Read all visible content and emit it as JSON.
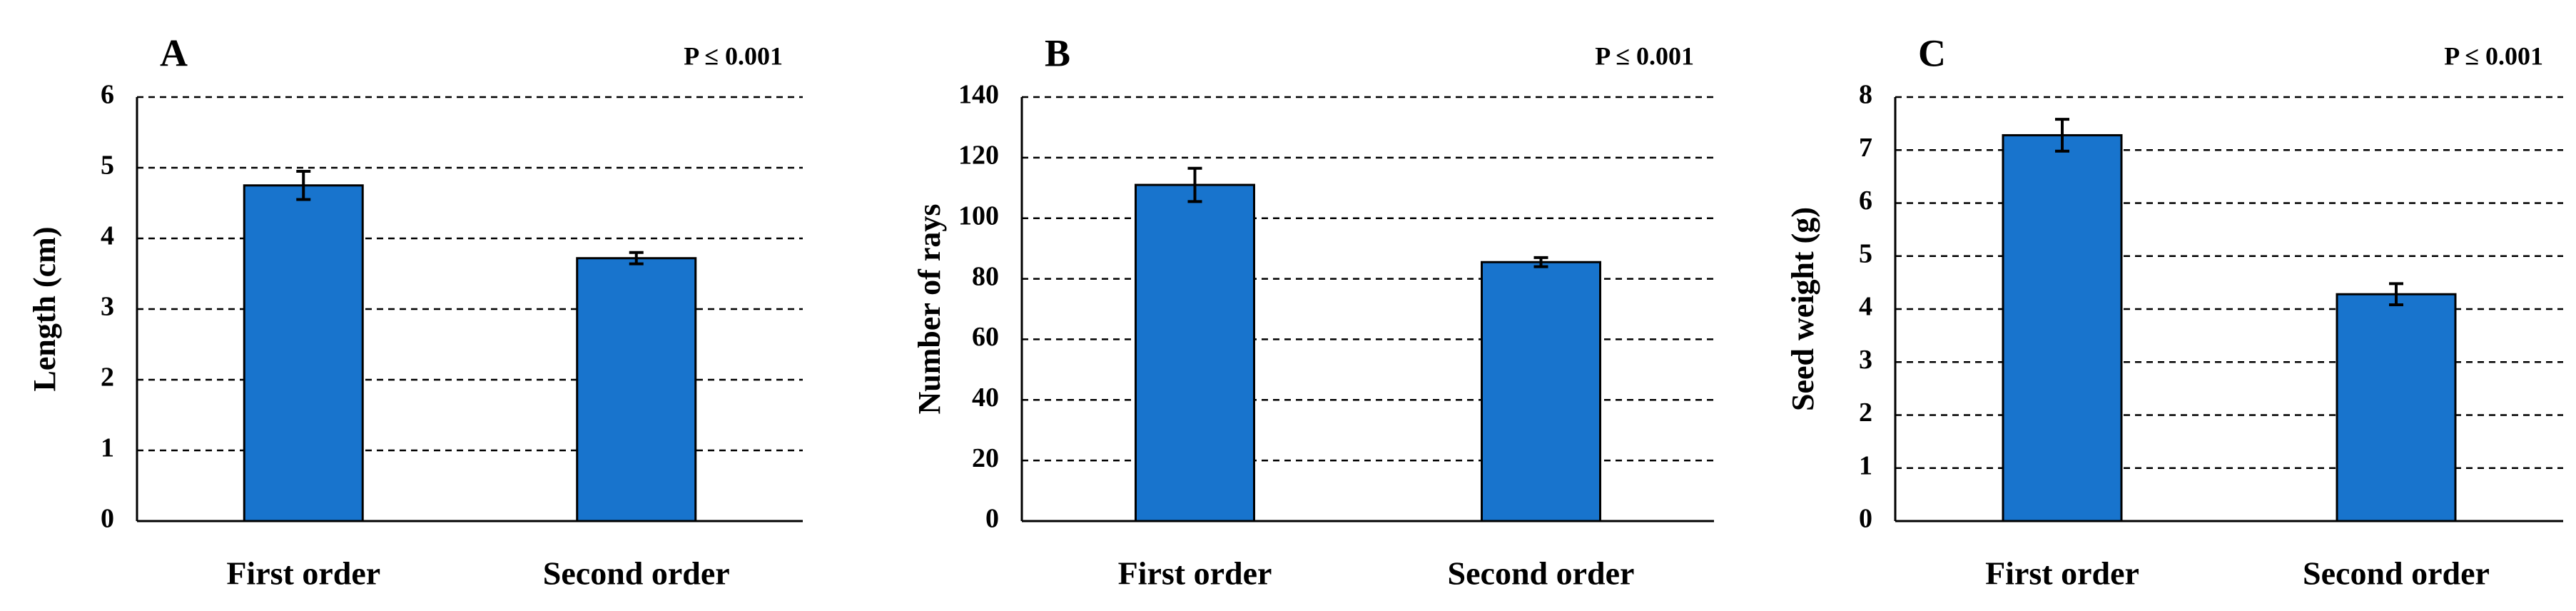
{
  "chart_data": [
    {
      "type": "bar",
      "panel": "A",
      "annotation": "P ≤ 0.001",
      "y_label": "Length (cm)",
      "categories": [
        "First order",
        "Second order"
      ],
      "series": [
        {
          "color": "#1874cd",
          "values": [
            4.75,
            3.72
          ],
          "errors": [
            0.2,
            0.08
          ]
        }
      ],
      "ylim": [
        0,
        6
      ],
      "yticks": [
        0,
        1,
        2,
        3,
        4,
        5,
        6
      ],
      "grid": true
    },
    {
      "type": "bar",
      "panel": "B",
      "annotation": "P ≤ 0.001",
      "y_label": "Number of rays",
      "categories": [
        "First order",
        "Second order"
      ],
      "series": [
        {
          "color": "#1874cd",
          "values": [
            111,
            85.5
          ],
          "errors": [
            5.5,
            1.5
          ]
        }
      ],
      "ylim": [
        0,
        140
      ],
      "yticks": [
        0,
        20,
        40,
        60,
        80,
        100,
        120,
        140
      ],
      "grid": true
    },
    {
      "type": "bar",
      "panel": "C",
      "annotation": "P ≤ 0.001",
      "y_label": "Seed weight (g)",
      "categories": [
        "First order",
        "Second order"
      ],
      "series": [
        {
          "color": "#1874cd",
          "values": [
            7.28,
            4.28
          ],
          "errors": [
            0.3,
            0.2
          ]
        }
      ],
      "ylim": [
        0,
        8
      ],
      "yticks": [
        0,
        1,
        2,
        3,
        4,
        5,
        6,
        7,
        8
      ],
      "grid": true
    }
  ]
}
